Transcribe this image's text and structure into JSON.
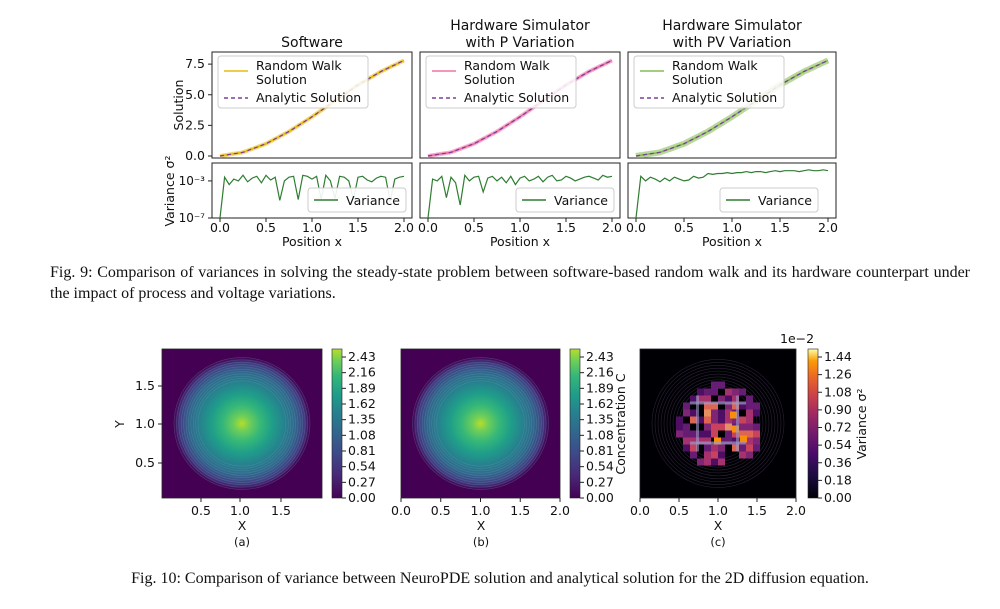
{
  "fig9": {
    "caption": "Fig. 9: Comparison of variances in solving the steady-state problem between software-based random walk and its hardware counterpart under the impact of process and voltage variations.",
    "panels": [
      {
        "title_lines": [
          "Software"
        ],
        "random_walk_color": "#e6b800",
        "legend_rw_lines": [
          "Random Walk",
          "Solution"
        ]
      },
      {
        "title_lines": [
          "Hardware Simulator",
          "with P Variation"
        ],
        "random_walk_color": "#f06aa0",
        "legend_rw_lines": [
          "Random Walk",
          "Solution"
        ]
      },
      {
        "title_lines": [
          "Hardware Simulator",
          "with PV Variation"
        ],
        "random_walk_color": "#7fb84a",
        "legend_rw_lines": [
          "Random Walk",
          "Solution"
        ]
      }
    ],
    "legend_analytic": "Analytic Solution",
    "legend_variance": "Variance",
    "ylabel_top": "Solution",
    "ylabel_bottom": "Variance σ²",
    "xlabel": "Position x",
    "top_yticks": [
      "0.0",
      "2.5",
      "5.0",
      "7.5"
    ],
    "bottom_yticks": [
      "10⁻⁷",
      "10⁻³"
    ],
    "xticks": [
      "0.0",
      "0.5",
      "1.0",
      "1.5",
      "2.0"
    ],
    "analytic_color": "#7b3f9e",
    "variance_color": "#2e7d32"
  },
  "chart_data": [
    {
      "type": "line",
      "title": "Software / Hardware Simulator with P Variation / Hardware Simulator with PV Variation",
      "xlabel": "Position x",
      "ylabel": "Solution",
      "xlim": [
        0,
        2
      ],
      "ylim": [
        0,
        8
      ],
      "x": [
        0.0,
        0.25,
        0.5,
        0.75,
        1.0,
        1.25,
        1.5,
        1.75,
        2.0
      ],
      "series": [
        {
          "name": "Analytic Solution",
          "values": [
            0.0,
            0.3,
            1.0,
            2.0,
            3.2,
            4.5,
            5.8,
            6.9,
            7.8
          ]
        },
        {
          "name": "Random Walk Solution",
          "values": [
            0.0,
            0.3,
            1.0,
            2.0,
            3.2,
            4.5,
            5.8,
            6.9,
            7.8
          ]
        }
      ]
    },
    {
      "type": "line",
      "title": "Variance",
      "xlabel": "Position x",
      "ylabel": "Variance σ²",
      "xlim": [
        0,
        2
      ],
      "ylim_log10": [
        -7,
        -1.5
      ],
      "series": [
        {
          "name": "Software",
          "x": [
            0.0,
            0.05,
            0.1,
            0.15,
            0.2,
            0.25,
            0.3,
            0.35,
            0.4,
            0.45,
            0.5,
            0.55,
            0.6,
            0.65,
            0.7,
            0.75,
            0.8,
            0.85,
            0.9,
            0.95,
            1.0,
            1.05,
            1.1,
            1.15,
            1.2,
            1.25,
            1.3,
            1.35,
            1.4,
            1.45,
            1.5,
            1.55,
            1.6,
            1.65,
            1.7,
            1.75,
            1.8,
            1.85,
            1.9,
            1.95,
            2.0
          ],
          "log10_values": [
            -7,
            -2.6,
            -3.4,
            -2.8,
            -3.0,
            -2.4,
            -3.1,
            -2.7,
            -2.5,
            -3.2,
            -2.4,
            -2.9,
            -2.6,
            -5.1,
            -3.0,
            -2.6,
            -2.5,
            -5.0,
            -2.4,
            -2.5,
            -2.8,
            -2.5,
            -5.0,
            -2.4,
            -3.0,
            -4.9,
            -2.5,
            -2.6,
            -3.0,
            -5.0,
            -2.6,
            -2.5,
            -2.9,
            -3.1,
            -2.7,
            -2.5,
            -2.6,
            -5.2,
            -2.8,
            -2.6,
            -2.5
          ]
        },
        {
          "name": "Hardware Simulator with P Variation",
          "x": [
            0.0,
            0.05,
            0.1,
            0.15,
            0.2,
            0.25,
            0.3,
            0.35,
            0.4,
            0.45,
            0.5,
            0.55,
            0.6,
            0.65,
            0.7,
            0.75,
            0.8,
            0.85,
            0.9,
            0.95,
            1.0,
            1.05,
            1.1,
            1.15,
            1.2,
            1.25,
            1.3,
            1.35,
            1.4,
            1.45,
            1.5,
            1.55,
            1.6,
            1.65,
            1.7,
            1.75,
            1.8,
            1.85,
            1.9,
            1.95,
            2.0
          ],
          "log10_values": [
            -7,
            -2.8,
            -3.0,
            -2.5,
            -4.8,
            -2.6,
            -3.2,
            -5.6,
            -2.4,
            -3.0,
            -2.6,
            -2.5,
            -4.2,
            -2.7,
            -2.5,
            -3.0,
            -2.6,
            -3.2,
            -2.5,
            -3.4,
            -2.7,
            -2.5,
            -3.0,
            -2.8,
            -2.5,
            -3.1,
            -2.6,
            -2.4,
            -3.0,
            -2.9,
            -2.5,
            -2.7,
            -3.0,
            -2.8,
            -2.6,
            -2.5,
            -2.7,
            -2.9,
            -2.4,
            -2.6,
            -2.5
          ]
        },
        {
          "name": "Hardware Simulator with PV Variation",
          "x": [
            0.0,
            0.05,
            0.1,
            0.15,
            0.2,
            0.25,
            0.3,
            0.35,
            0.4,
            0.45,
            0.5,
            0.55,
            0.6,
            0.65,
            0.7,
            0.75,
            0.8,
            0.85,
            0.9,
            0.95,
            1.0,
            1.05,
            1.1,
            1.15,
            1.2,
            1.25,
            1.3,
            1.35,
            1.4,
            1.45,
            1.5,
            1.55,
            1.6,
            1.65,
            1.7,
            1.75,
            1.8,
            1.85,
            1.9,
            1.95,
            2.0
          ],
          "log10_values": [
            -7,
            -2.5,
            -3.0,
            -2.6,
            -2.8,
            -3.1,
            -2.7,
            -3.0,
            -2.6,
            -2.8,
            -3.0,
            -2.9,
            -2.5,
            -2.7,
            -2.6,
            -2.2,
            -2.3,
            -2.2,
            -2.2,
            -2.1,
            -2.2,
            -2.1,
            -2.1,
            -2.0,
            -2.1,
            -2.0,
            -2.0,
            -2.1,
            -2.0,
            -1.9,
            -2.0,
            -1.9,
            -1.9,
            -1.9,
            -2.0,
            -1.9,
            -1.8,
            -1.9,
            -1.9,
            -1.8,
            -1.9
          ]
        }
      ]
    },
    {
      "type": "heatmap",
      "title": "(a)",
      "xlabel": "X",
      "ylabel": "Y",
      "xlim": [
        0,
        2
      ],
      "ylim": [
        0,
        2
      ],
      "xticks": [
        "0.5",
        "1.0",
        "1.5"
      ],
      "yticks": [
        "0.5",
        "1.0",
        "1.5"
      ],
      "colorbar_ticks": [
        "0.00",
        "0.27",
        "0.54",
        "0.81",
        "1.08",
        "1.35",
        "1.62",
        "1.89",
        "2.16",
        "2.43"
      ],
      "peak_value": 2.43,
      "peak_at": [
        1.0,
        1.0
      ]
    },
    {
      "type": "heatmap",
      "title": "(b)",
      "xlabel": "X",
      "xlim": [
        0,
        2
      ],
      "ylim": [
        0,
        2
      ],
      "xticks": [
        "0.0",
        "0.5",
        "1.0",
        "1.5",
        "2.0"
      ],
      "colorbar_label": "Concentration C",
      "colorbar_ticks": [
        "0.00",
        "0.27",
        "0.54",
        "0.81",
        "1.08",
        "1.35",
        "1.62",
        "1.89",
        "2.16",
        "2.43"
      ],
      "peak_value": 2.43,
      "peak_at": [
        1.0,
        1.0
      ]
    },
    {
      "type": "heatmap",
      "title": "(c)",
      "xlabel": "X",
      "xlim": [
        0,
        2
      ],
      "ylim": [
        0,
        2
      ],
      "xticks": [
        "0.0",
        "0.5",
        "1.0",
        "1.5",
        "2.0"
      ],
      "colorbar_label": "Variance σ²",
      "colorbar_scale": "1e−2",
      "colorbar_ticks": [
        "0.00",
        "0.18",
        "0.36",
        "0.54",
        "0.72",
        "0.90",
        "1.08",
        "1.26",
        "1.44"
      ]
    }
  ],
  "fig10": {
    "caption": "Fig. 10: Comparison of variance between NeuroPDE solution and analytical solution for the 2D diffusion equation.",
    "sublabels": [
      "(a)",
      "(b)",
      "(c)"
    ],
    "xlabel": "X",
    "ylabel": "Y",
    "colorbar_label_b": "Concentration C",
    "colorbar_label_c": "Variance σ²",
    "colorbar_scale_c": "1e−2",
    "ticks_a_x": [
      "0.5",
      "1.0",
      "1.5"
    ],
    "ticks_a_y": [
      "1.5",
      "1.0",
      "0.5"
    ],
    "ticks_bc_x": [
      "0.0",
      "0.5",
      "1.0",
      "1.5",
      "2.0"
    ],
    "cbar_ticks_ab": [
      "2.43",
      "2.16",
      "1.89",
      "1.62",
      "1.35",
      "1.08",
      "0.81",
      "0.54",
      "0.27",
      "0.00"
    ],
    "cbar_ticks_c": [
      "1.44",
      "1.26",
      "1.08",
      "0.90",
      "0.72",
      "0.54",
      "0.36",
      "0.18",
      "0.00"
    ]
  }
}
